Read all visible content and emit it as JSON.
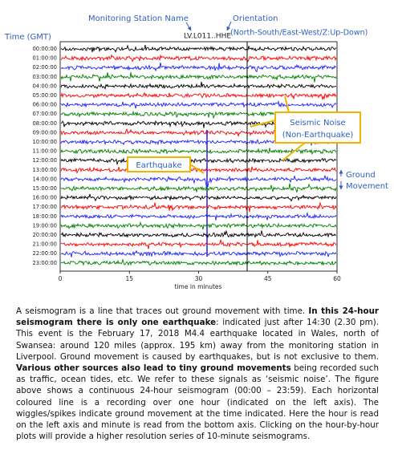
{
  "figure": {
    "station_label": "Monitoring Station Name",
    "station": "LV.L011..HHE",
    "orientation_label": "Orientation",
    "orientation": "(North-South/East-West/Z:Up-Down)",
    "time_label": "Time (GMT)",
    "hours": [
      "00:00:00",
      "01:00:00",
      "02:00:00",
      "03:00:00",
      "04:00:00",
      "05:00:00",
      "06:00:00",
      "07:00:00",
      "08:00:00",
      "09:00:00",
      "10:00:00",
      "11:00:00",
      "12:00:00",
      "13:00:00",
      "14:00:00",
      "15:00:00",
      "16:00:00",
      "17:00:00",
      "18:00:00",
      "19:00:00",
      "20:00:00",
      "21:00:00",
      "22:00:00",
      "23:00:00"
    ],
    "colors": [
      "#000000",
      "#ff0000",
      "#2020ff",
      "#008000"
    ],
    "xlim": [
      0,
      60
    ],
    "xticks": [
      0,
      15,
      30,
      45,
      60
    ],
    "xlabel": "time in minutes",
    "earthquake_label": "Earthquake",
    "noise_label": "Seismic Noise (Non-Earthquake)",
    "ground_label": "Ground Movement"
  },
  "paragraph": [
    "A seismogram is a line that traces out ground movement with time. ",
    "In this 24-hour seismogram there is only one earthquake",
    ": indicated just after 14:30 (2.30 pm). This event is the February 17, 2018 M4.4 earthquake located in Wales, north of Swansea: around 120 miles (approx. 195 km) away from the monitoring station in Liverpool. Ground movement is caused by earthquakes, but is not exclusive to them. ",
    "Various other sources also lead to tiny ground movements",
    " being recorded such as traffic, ocean tides, etc. We refer to these signals as ‘seismic noise’. The figure above shows a continuous 24-hour seismogram (00:00 – 23:59). Each horizontal coloured line is a recording over one hour (indicated on the left axis). The wiggles/spikes indicate ground movement at the time indicated. Here the hour is read on the left axis and minute is read from the bottom axis. Clicking on the hour-by-hour plots will provide a higher resolution series of 10-minute seismograms."
  ]
}
